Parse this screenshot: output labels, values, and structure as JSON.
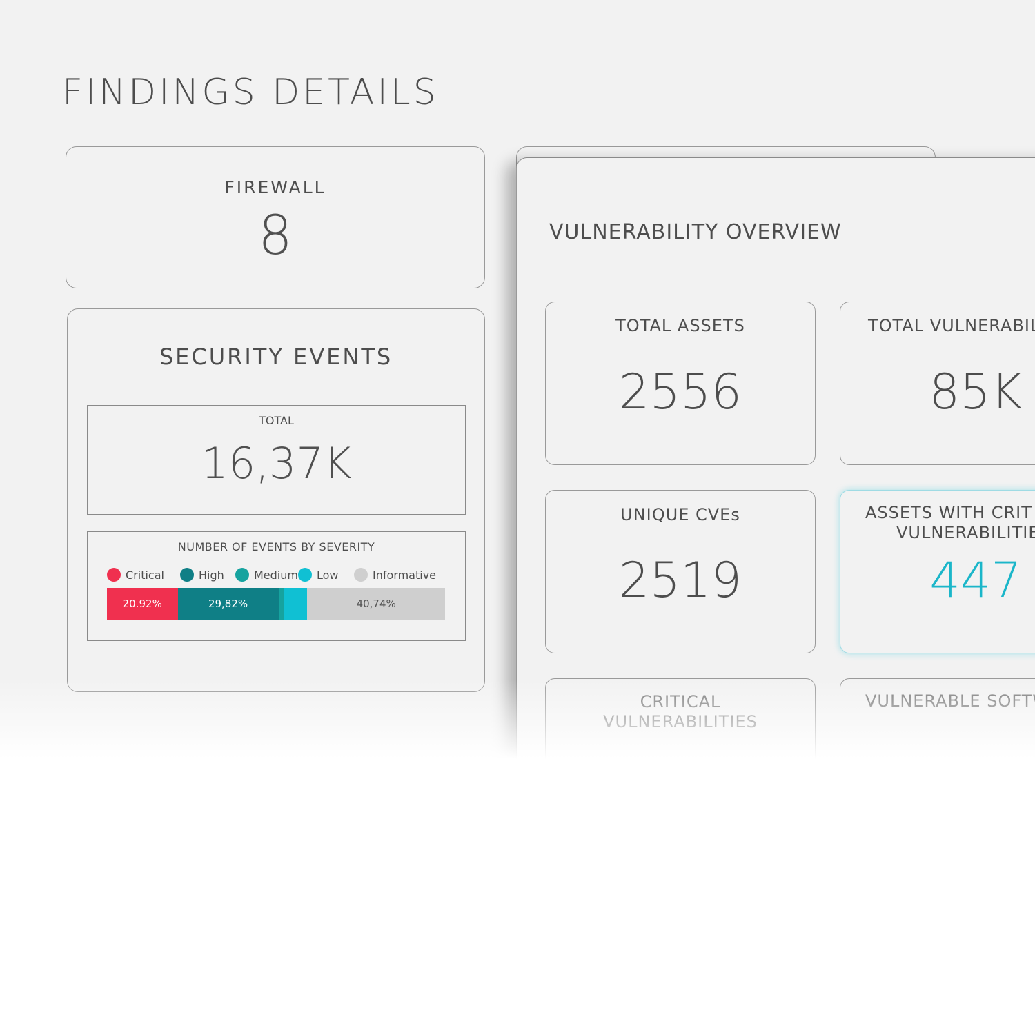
{
  "page": {
    "title": "FINDINGS DETAILS"
  },
  "firewall": {
    "label": "FIREWALL",
    "value": "8"
  },
  "security_events": {
    "title": "SECURITY EVENTS",
    "total": {
      "label": "TOTAL",
      "value": "16,37K"
    },
    "severity": {
      "title": "NUMBER OF EVENTS BY SEVERITY",
      "legend": [
        {
          "label": "Critical",
          "color": "#f0304f"
        },
        {
          "label": "High",
          "color": "#0f7f86"
        },
        {
          "label": "Medium",
          "color": "#16a39f"
        },
        {
          "label": "Low",
          "color": "#10c0d3"
        },
        {
          "label": "Informative",
          "color": "#cfcfcf"
        }
      ],
      "segments": [
        {
          "name": "Critical",
          "label": "20.92%",
          "color": "#f0304f",
          "fraction": 0.2092
        },
        {
          "name": "High",
          "label": "29,82%",
          "color": "#0f7f86",
          "fraction": 0.2982
        },
        {
          "name": "Medium",
          "label": "",
          "color": "#16a39f",
          "fraction": 0.0147
        },
        {
          "name": "Low",
          "label": "",
          "color": "#10c0d3",
          "fraction": 0.0705
        },
        {
          "name": "Informative",
          "label": "40,74%",
          "color": "#cfcfcf",
          "fraction": 0.4074
        }
      ]
    }
  },
  "vulnerability_overview": {
    "title": "VULNERABILITY OVERVIEW",
    "tiles": {
      "total_assets": {
        "label": "TOTAL ASSETS",
        "value": "2556"
      },
      "total_vulnerabilities": {
        "label": "TOTAL VULNERABILI",
        "value": "85K"
      },
      "unique_cves": {
        "label": "UNIQUE CVEs",
        "value": "2519"
      },
      "assets_with_critical": {
        "label_line1": "ASSETS WITH CRIT",
        "label_line2": "VULNERABILITIE",
        "value": "447"
      },
      "critical_vulnerabilities": {
        "label_line1": "CRITICAL",
        "label_line2": "VULNERABILITIES"
      },
      "vulnerable_software": {
        "label": "VULNERABLE SOFTW"
      }
    }
  }
}
